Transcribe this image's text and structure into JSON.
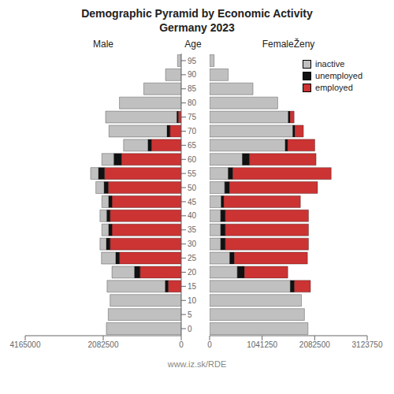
{
  "chart_data": [
    {
      "type": "bar",
      "orientation": "horizontal",
      "stacked": true,
      "grid": false,
      "title": "Demographic Pyramid by Economic Activity\nGermany 2023",
      "xlabel": "Male",
      "ylabel": "Age",
      "annotations": [
        "www.iz.sk/RDE"
      ],
      "categories": [
        "0",
        "5",
        "10",
        "15",
        "20",
        "25",
        "30",
        "35",
        "40",
        "45",
        "50",
        "55",
        "60",
        "65",
        "70",
        "75",
        "80",
        "85",
        "90",
        "95"
      ],
      "series": [
        {
          "name": "employed",
          "color": "#cc3333",
          "values": [
            0,
            0,
            0,
            350000,
            1100000,
            1650000,
            1900000,
            1850000,
            1900000,
            1850000,
            1950000,
            2050000,
            1600000,
            800000,
            300000,
            80000,
            0,
            0,
            0,
            0
          ]
        },
        {
          "name": "unemployed",
          "color": "#111111",
          "values": [
            0,
            0,
            0,
            80000,
            150000,
            100000,
            100000,
            90000,
            90000,
            90000,
            110000,
            160000,
            200000,
            90000,
            80000,
            40000,
            0,
            0,
            0,
            0
          ]
        },
        {
          "name": "inactive",
          "color": "#c0c0c0",
          "values": [
            2000000,
            1950000,
            1900000,
            1550000,
            600000,
            380000,
            170000,
            180000,
            180000,
            180000,
            220000,
            210000,
            320000,
            650000,
            1550000,
            1900000,
            1650000,
            1000000,
            420000,
            100000
          ]
        }
      ],
      "xlim": [
        4165000,
        0
      ],
      "xticks": [
        4165000,
        2082500,
        0
      ]
    },
    {
      "type": "bar",
      "orientation": "horizontal",
      "stacked": true,
      "grid": false,
      "xlabel": "FemaleŽeny",
      "legend": "upper right",
      "tick_labels": "x",
      "categories": [
        "0",
        "5",
        "10",
        "15",
        "20",
        "25",
        "30",
        "35",
        "40",
        "45",
        "50",
        "55",
        "60",
        "65",
        "70",
        "75",
        "80",
        "85",
        "90",
        "95"
      ],
      "series": [
        {
          "name": "inactive",
          "color": "#c0c0c0",
          "values": [
            1950000,
            1880000,
            1820000,
            1600000,
            550000,
            400000,
            220000,
            220000,
            220000,
            230000,
            300000,
            370000,
            650000,
            1500000,
            1650000,
            1560000,
            1350000,
            860000,
            370000,
            90000
          ]
        },
        {
          "name": "unemployed",
          "color": "#111111",
          "values": [
            0,
            0,
            0,
            80000,
            140000,
            90000,
            90000,
            90000,
            90000,
            50000,
            90000,
            90000,
            140000,
            45000,
            40000,
            35000,
            0,
            0,
            0,
            0
          ]
        },
        {
          "name": "employed",
          "color": "#cc3333",
          "values": [
            0,
            0,
            0,
            320000,
            860000,
            1450000,
            1650000,
            1650000,
            1650000,
            1520000,
            1750000,
            1950000,
            1320000,
            540000,
            170000,
            80000,
            0,
            0,
            0,
            0
          ]
        }
      ],
      "xlim": [
        0,
        3123750
      ],
      "xticks": [
        0,
        1041250,
        2082500,
        3123750
      ]
    }
  ]
}
